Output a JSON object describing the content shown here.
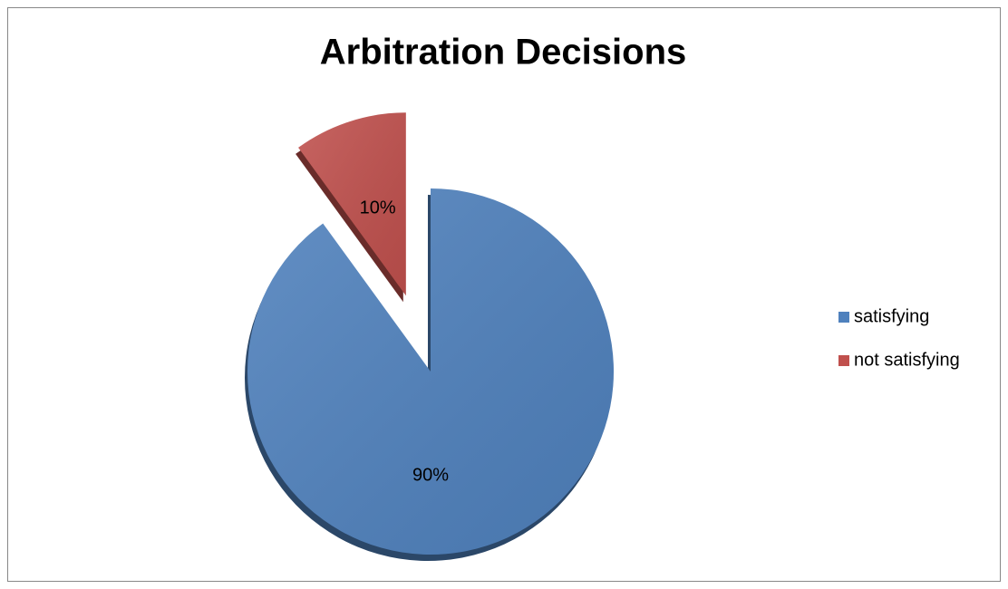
{
  "chart_data": {
    "type": "pie",
    "title": "Arbitration Decisions",
    "categories": [
      "satisfying",
      "not satisfying"
    ],
    "values": [
      90,
      10
    ],
    "value_labels": [
      "90%",
      "10%"
    ],
    "colors": [
      "#4f81bd",
      "#c0504d"
    ],
    "legend": "right"
  }
}
